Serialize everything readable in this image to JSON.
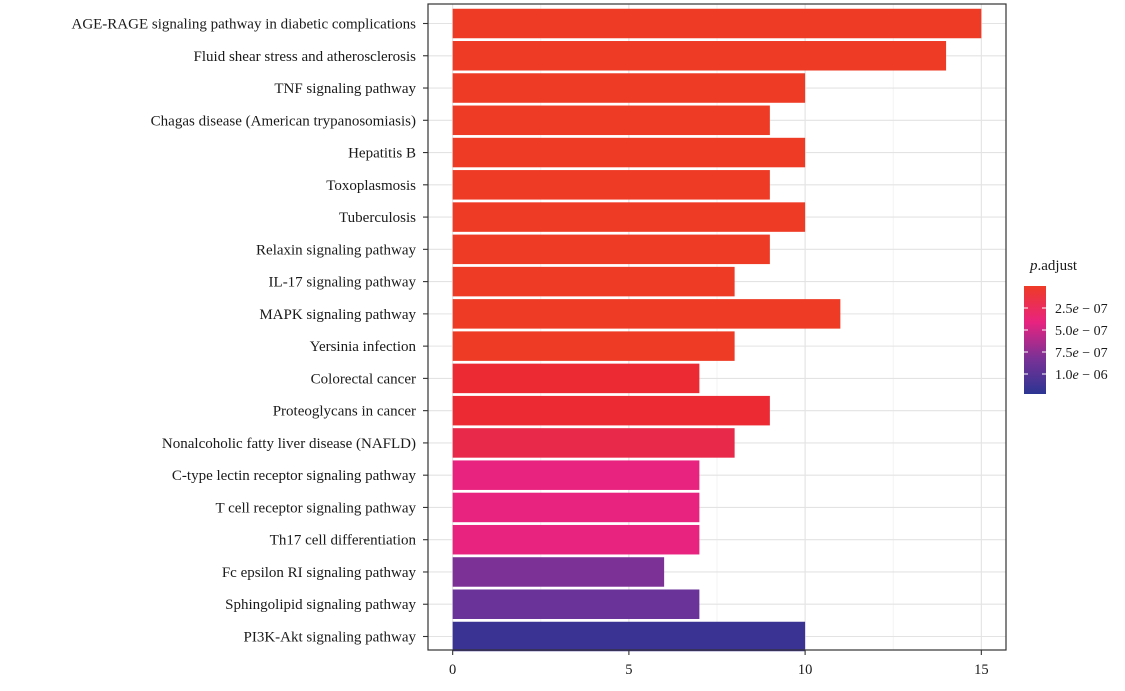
{
  "chart_data": {
    "type": "bar",
    "orientation": "horizontal",
    "categories": [
      "AGE-RAGE signaling pathway in diabetic complications",
      "Fluid shear stress and atherosclerosis",
      "TNF signaling pathway",
      "Chagas disease (American trypanosomiasis)",
      "Hepatitis B",
      "Toxoplasmosis",
      "Tuberculosis",
      "Relaxin signaling pathway",
      "IL-17 signaling pathway",
      "MAPK signaling pathway",
      "Yersinia infection",
      "Colorectal cancer",
      "Proteoglycans in cancer",
      "Nonalcoholic fatty liver disease (NAFLD)",
      "C-type lectin receptor signaling pathway",
      "T cell receptor signaling pathway",
      "Th17 cell differentiation",
      "Fc epsilon RI signaling pathway",
      "Sphingolipid signaling pathway",
      "PI3K-Akt signaling pathway"
    ],
    "values": [
      15,
      14,
      10,
      9,
      10,
      9,
      10,
      9,
      8,
      11,
      8,
      7,
      9,
      8,
      7,
      7,
      7,
      6,
      7,
      10
    ],
    "bar_colors": [
      "#ee3b26",
      "#ee3b26",
      "#ee3b26",
      "#ee3b26",
      "#ee3b26",
      "#ee3b26",
      "#ee3b26",
      "#ee3b26",
      "#ee3b26",
      "#ee3b26",
      "#ee3b26",
      "#ec2a33",
      "#ec2a33",
      "#e8294a",
      "#e8237f",
      "#e8237f",
      "#e8237f",
      "#7b3196",
      "#69339a",
      "#3b3393"
    ],
    "xlim": [
      -0.7,
      15.7
    ],
    "xticks": [
      0,
      5,
      10,
      15
    ],
    "xtick_labels": [
      "0",
      "5",
      "10",
      "15"
    ],
    "grid": true,
    "legend": {
      "position": "right",
      "title_italic": "p",
      "title_rest": ".adjust",
      "gradient_colors": [
        "#ee3b26",
        "#e8237f",
        "#7b3196",
        "#2c3593"
      ],
      "entries": [
        {
          "mantissa": "2.5",
          "exp_italic": "e",
          "rest": " − 07"
        },
        {
          "mantissa": "5.0",
          "exp_italic": "e",
          "rest": " − 07"
        },
        {
          "mantissa": "7.5",
          "exp_italic": "e",
          "rest": " − 07"
        },
        {
          "mantissa": "1.0",
          "exp_italic": "e",
          "rest": " − 06"
        }
      ]
    }
  }
}
